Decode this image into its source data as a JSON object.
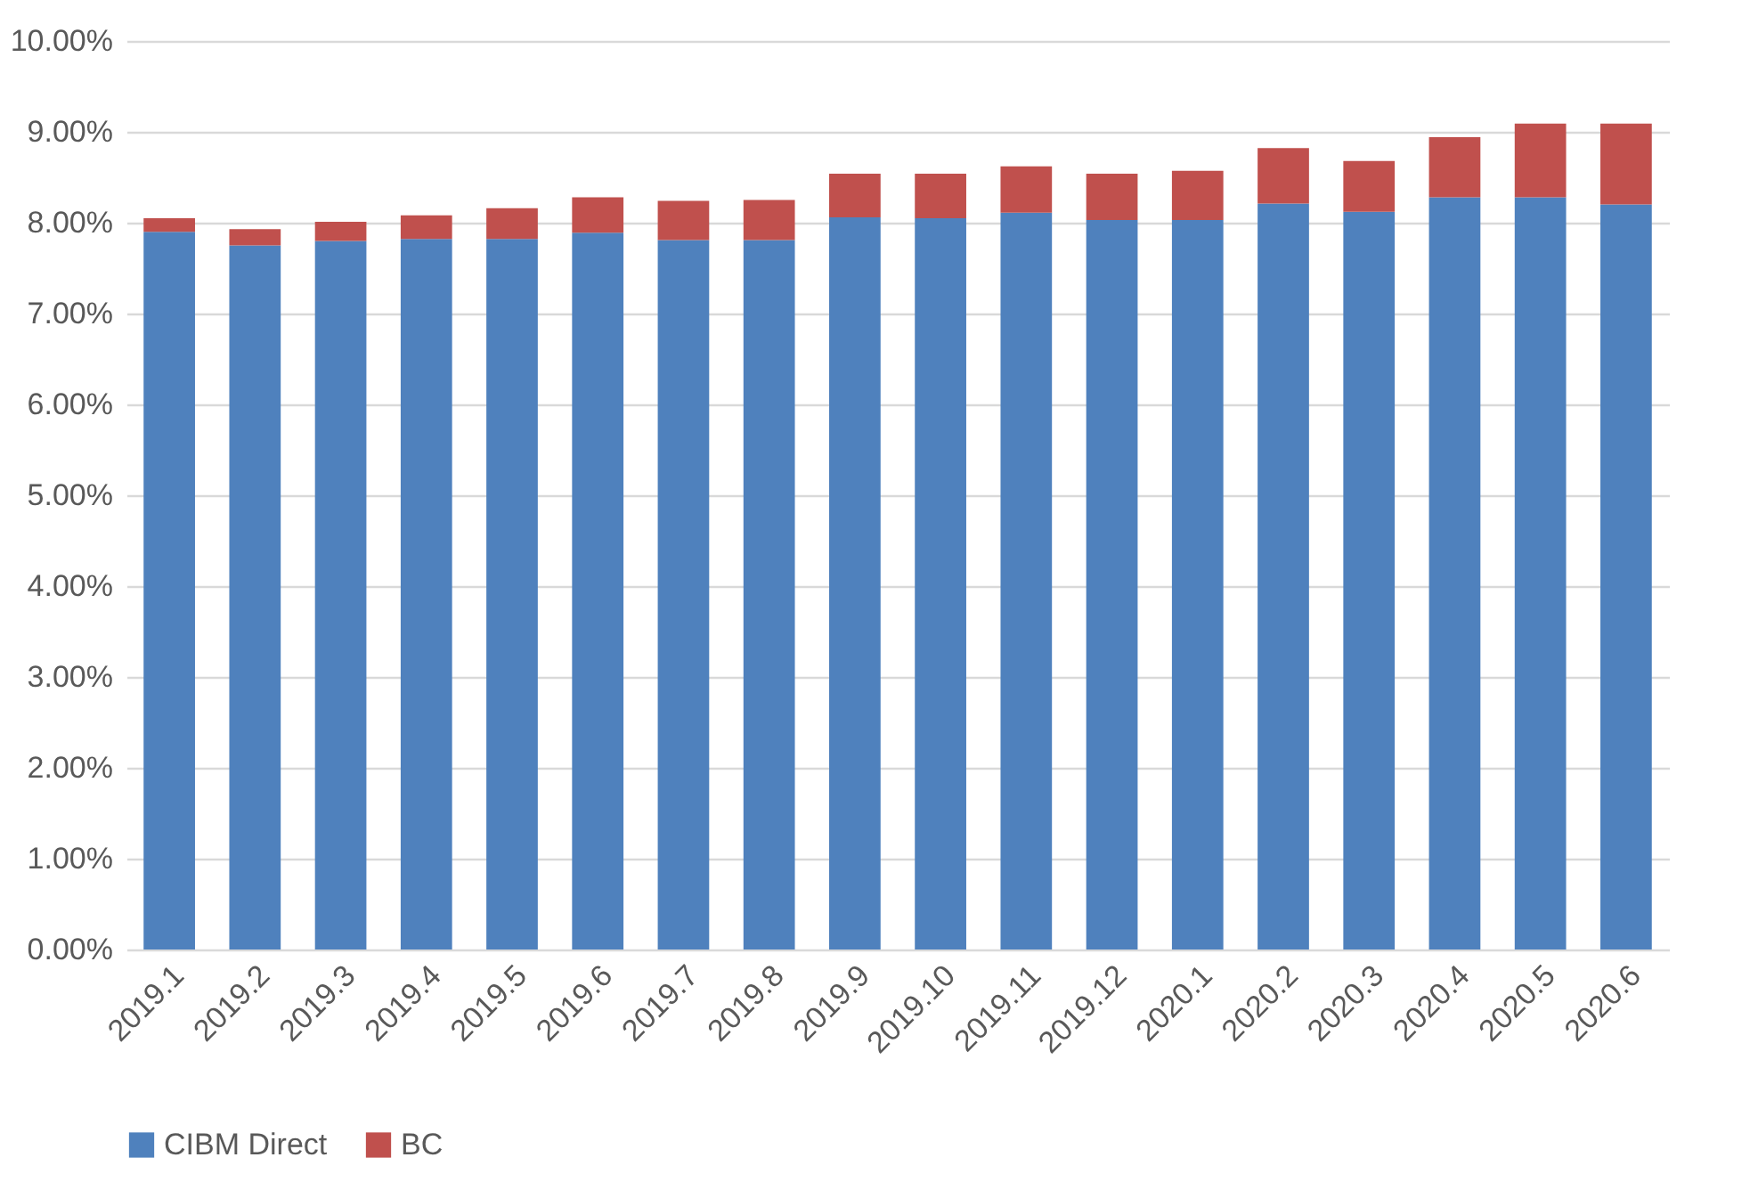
{
  "chart_data": {
    "type": "bar",
    "stacked": true,
    "categories": [
      "2019.1",
      "2019.2",
      "2019.3",
      "2019.4",
      "2019.5",
      "2019.6",
      "2019.7",
      "2019.8",
      "2019.9",
      "2019.10",
      "2019.11",
      "2019.12",
      "2020.1",
      "2020.2",
      "2020.3",
      "2020.4",
      "2020.5",
      "2020.6"
    ],
    "series": [
      {
        "name": "CIBM Direct",
        "color": "#4f81bd",
        "values": [
          7.9,
          7.75,
          7.8,
          7.82,
          7.82,
          7.89,
          7.81,
          7.81,
          8.06,
          8.05,
          8.11,
          8.03,
          8.03,
          8.21,
          8.12,
          8.28,
          8.28,
          8.2
        ]
      },
      {
        "name": "BC",
        "color": "#c0504d",
        "values": [
          0.15,
          0.18,
          0.21,
          0.26,
          0.34,
          0.39,
          0.43,
          0.44,
          0.48,
          0.49,
          0.51,
          0.51,
          0.54,
          0.61,
          0.56,
          0.66,
          0.81,
          0.89
        ]
      }
    ],
    "ylim": [
      0,
      10
    ],
    "yticks": [
      {
        "value": 0,
        "label": "0.00%"
      },
      {
        "value": 1,
        "label": "1.00%"
      },
      {
        "value": 2,
        "label": "2.00%"
      },
      {
        "value": 3,
        "label": "3.00%"
      },
      {
        "value": 4,
        "label": "4.00%"
      },
      {
        "value": 5,
        "label": "5.00%"
      },
      {
        "value": 6,
        "label": "6.00%"
      },
      {
        "value": 7,
        "label": "7.00%"
      },
      {
        "value": 8,
        "label": "8.00%"
      },
      {
        "value": 9,
        "label": "9.00%"
      },
      {
        "value": 10,
        "label": "10.00%"
      }
    ],
    "grid": "y",
    "legend": "bottom"
  }
}
